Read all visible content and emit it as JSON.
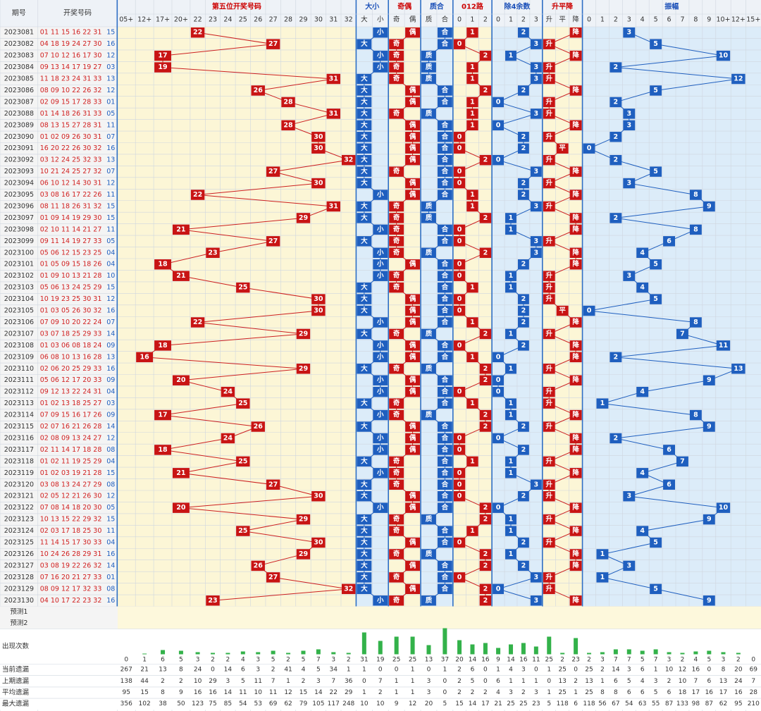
{
  "header": {
    "period_label": "期号",
    "draw_label": "开奖号码",
    "groups": [
      {
        "title": "第五位开奖号码",
        "color": "#cc0000"
      },
      {
        "title": "大小",
        "color": "#1a4fb8"
      },
      {
        "title": "奇偶",
        "color": "#cc0000"
      },
      {
        "title": "质合",
        "color": "#1a4fb8"
      },
      {
        "title": "012路",
        "color": "#cc0000"
      },
      {
        "title": "除4余数",
        "color": "#1a4fb8"
      },
      {
        "title": "升平降",
        "color": "#cc0000"
      },
      {
        "title": "振幅",
        "color": "#1a4fb8"
      }
    ],
    "sub_labels": {
      "position": [
        "05+",
        "12+",
        "17+",
        "20+",
        "22",
        "23",
        "24",
        "25",
        "26",
        "27",
        "28",
        "29",
        "30",
        "31",
        "32"
      ],
      "big_small": [
        "大",
        "小"
      ],
      "odd_even": [
        "奇",
        "偶"
      ],
      "prime_comp": [
        "质",
        "合"
      ],
      "route": [
        "0",
        "1",
        "2"
      ],
      "mod4": [
        "0",
        "1",
        "2",
        "3"
      ],
      "trend": [
        "升",
        "平",
        "降"
      ],
      "amplitude": [
        "0",
        "1",
        "2",
        "3",
        "4",
        "5",
        "6",
        "7",
        "8",
        "9",
        "10+",
        "12+",
        "15+"
      ]
    }
  },
  "chart_data": {
    "type": "table",
    "title": "第五位开奖号码",
    "position_buckets": [
      "05+",
      "12+",
      "17+",
      "20+",
      "22",
      "23",
      "24",
      "25",
      "26",
      "27",
      "28",
      "29",
      "30",
      "31",
      "32"
    ],
    "rows": [
      {
        "period": "2023081",
        "nums": "01 11 15 16 22 31 15",
        "fifth": 22,
        "big_small": "小",
        "odd_even": "偶",
        "prime_comp": "合",
        "route": 1,
        "mod4": 2,
        "trend": "降",
        "amp": 3
      },
      {
        "period": "2023082",
        "nums": "04 18 19 24 27 30 16",
        "fifth": 27,
        "big_small": "大",
        "odd_even": "奇",
        "prime_comp": "合",
        "route": 0,
        "mod4": 3,
        "trend": "升",
        "amp": 5
      },
      {
        "period": "2023083",
        "nums": "07 10 12 16 17 30 12",
        "fifth": 17,
        "big_small": "小",
        "odd_even": "奇",
        "prime_comp": "质",
        "route": 2,
        "mod4": 1,
        "trend": "降",
        "amp": 10
      },
      {
        "period": "2023084",
        "nums": "09 13 14 17 19 27 03",
        "fifth": 19,
        "big_small": "小",
        "odd_even": "奇",
        "prime_comp": "质",
        "route": 1,
        "mod4": 3,
        "trend": "升",
        "amp": 2
      },
      {
        "period": "2023085",
        "nums": "11 18 23 24 31 33 13",
        "fifth": 31,
        "big_small": "大",
        "odd_even": "奇",
        "prime_comp": "质",
        "route": 1,
        "mod4": 3,
        "trend": "升",
        "amp": 12
      },
      {
        "period": "2023086",
        "nums": "08 09 10 22 26 32 12",
        "fifth": 26,
        "big_small": "大",
        "odd_even": "偶",
        "prime_comp": "合",
        "route": 2,
        "mod4": 2,
        "trend": "降",
        "amp": 5
      },
      {
        "period": "2023087",
        "nums": "02 09 15 17 28 33 01",
        "fifth": 28,
        "big_small": "大",
        "odd_even": "偶",
        "prime_comp": "合",
        "route": 1,
        "mod4": 0,
        "trend": "升",
        "amp": 2
      },
      {
        "period": "2023088",
        "nums": "01 14 18 26 31 33 05",
        "fifth": 31,
        "big_small": "大",
        "odd_even": "奇",
        "prime_comp": "质",
        "route": 1,
        "mod4": 3,
        "trend": "升",
        "amp": 3
      },
      {
        "period": "2023089",
        "nums": "08 13 15 27 28 31 11",
        "fifth": 28,
        "big_small": "大",
        "odd_even": "偶",
        "prime_comp": "合",
        "route": 1,
        "mod4": 0,
        "trend": "降",
        "amp": 3
      },
      {
        "period": "2023090",
        "nums": "01 02 09 26 30 31 07",
        "fifth": 30,
        "big_small": "大",
        "odd_even": "偶",
        "prime_comp": "合",
        "route": 0,
        "mod4": 2,
        "trend": "升",
        "amp": 2
      },
      {
        "period": "2023091",
        "nums": "16 20 22 26 30 32 16",
        "fifth": 30,
        "big_small": "大",
        "odd_even": "偶",
        "prime_comp": "合",
        "route": 0,
        "mod4": 2,
        "trend": "平",
        "amp": 0
      },
      {
        "period": "2023092",
        "nums": "03 12 24 25 32 33 13",
        "fifth": 32,
        "big_small": "大",
        "odd_even": "偶",
        "prime_comp": "合",
        "route": 2,
        "mod4": 0,
        "trend": "升",
        "amp": 2
      },
      {
        "period": "2023093",
        "nums": "10 21 24 25 27 32 07",
        "fifth": 27,
        "big_small": "大",
        "odd_even": "奇",
        "prime_comp": "合",
        "route": 0,
        "mod4": 3,
        "trend": "降",
        "amp": 5
      },
      {
        "period": "2023094",
        "nums": "06 10 12 14 30 31 12",
        "fifth": 30,
        "big_small": "大",
        "odd_even": "偶",
        "prime_comp": "合",
        "route": 0,
        "mod4": 2,
        "trend": "升",
        "amp": 3
      },
      {
        "period": "2023095",
        "nums": "03 08 16 17 22 26 11",
        "fifth": 22,
        "big_small": "小",
        "odd_even": "偶",
        "prime_comp": "合",
        "route": 1,
        "mod4": 2,
        "trend": "降",
        "amp": 8
      },
      {
        "period": "2023096",
        "nums": "08 11 18 26 31 32 15",
        "fifth": 31,
        "big_small": "大",
        "odd_even": "奇",
        "prime_comp": "质",
        "route": 1,
        "mod4": 3,
        "trend": "升",
        "amp": 9
      },
      {
        "period": "2023097",
        "nums": "01 09 14 19 29 30 15",
        "fifth": 29,
        "big_small": "大",
        "odd_even": "奇",
        "prime_comp": "质",
        "route": 2,
        "mod4": 1,
        "trend": "降",
        "amp": 2
      },
      {
        "period": "2023098",
        "nums": "02 10 11 14 21 27 11",
        "fifth": 21,
        "big_small": "小",
        "odd_even": "奇",
        "prime_comp": "合",
        "route": 0,
        "mod4": 1,
        "trend": "降",
        "amp": 8
      },
      {
        "period": "2023099",
        "nums": "09 11 14 19 27 33 05",
        "fifth": 27,
        "big_small": "大",
        "odd_even": "奇",
        "prime_comp": "合",
        "route": 0,
        "mod4": 3,
        "trend": "升",
        "amp": 6
      },
      {
        "period": "2023100",
        "nums": "05 06 12 15 23 25 04",
        "fifth": 23,
        "big_small": "小",
        "odd_even": "奇",
        "prime_comp": "质",
        "route": 2,
        "mod4": 3,
        "trend": "降",
        "amp": 4
      },
      {
        "period": "2023101",
        "nums": "01 05 09 15 18 26 04",
        "fifth": 18,
        "big_small": "小",
        "odd_even": "偶",
        "prime_comp": "合",
        "route": 0,
        "mod4": 2,
        "trend": "降",
        "amp": 5
      },
      {
        "period": "2023102",
        "nums": "01 09 10 13 21 28 10",
        "fifth": 21,
        "big_small": "小",
        "odd_even": "奇",
        "prime_comp": "合",
        "route": 0,
        "mod4": 1,
        "trend": "升",
        "amp": 3
      },
      {
        "period": "2023103",
        "nums": "05 06 13 24 25 29 15",
        "fifth": 25,
        "big_small": "大",
        "odd_even": "奇",
        "prime_comp": "合",
        "route": 1,
        "mod4": 1,
        "trend": "升",
        "amp": 4
      },
      {
        "period": "2023104",
        "nums": "10 19 23 25 30 31 12",
        "fifth": 30,
        "big_small": "大",
        "odd_even": "偶",
        "prime_comp": "合",
        "route": 0,
        "mod4": 2,
        "trend": "升",
        "amp": 5
      },
      {
        "period": "2023105",
        "nums": "01 03 05 26 30 32 16",
        "fifth": 30,
        "big_small": "大",
        "odd_even": "偶",
        "prime_comp": "合",
        "route": 0,
        "mod4": 2,
        "trend": "平",
        "amp": 0
      },
      {
        "period": "2023106",
        "nums": "07 09 10 20 22 24 07",
        "fifth": 22,
        "big_small": "小",
        "odd_even": "偶",
        "prime_comp": "合",
        "route": 1,
        "mod4": 2,
        "trend": "降",
        "amp": 8
      },
      {
        "period": "2023107",
        "nums": "03 07 18 25 29 33 14",
        "fifth": 29,
        "big_small": "大",
        "odd_even": "奇",
        "prime_comp": "质",
        "route": 2,
        "mod4": 1,
        "trend": "升",
        "amp": 7
      },
      {
        "period": "2023108",
        "nums": "01 03 06 08 18 24 09",
        "fifth": 18,
        "big_small": "小",
        "odd_even": "偶",
        "prime_comp": "合",
        "route": 0,
        "mod4": 2,
        "trend": "降",
        "amp": 11
      },
      {
        "period": "2023109",
        "nums": "06 08 10 13 16 28 13",
        "fifth": 16,
        "big_small": "小",
        "odd_even": "偶",
        "prime_comp": "合",
        "route": 1,
        "mod4": 0,
        "trend": "降",
        "amp": 2
      },
      {
        "period": "2023110",
        "nums": "02 06 20 25 29 33 16",
        "fifth": 29,
        "big_small": "大",
        "odd_even": "奇",
        "prime_comp": "质",
        "route": 2,
        "mod4": 1,
        "trend": "升",
        "amp": 13
      },
      {
        "period": "2023111",
        "nums": "05 06 12 17 20 33 09",
        "fifth": 20,
        "big_small": "小",
        "odd_even": "偶",
        "prime_comp": "合",
        "route": 2,
        "mod4": 0,
        "trend": "降",
        "amp": 9
      },
      {
        "period": "2023112",
        "nums": "09 12 13 22 24 31 04",
        "fifth": 24,
        "big_small": "小",
        "odd_even": "偶",
        "prime_comp": "合",
        "route": 0,
        "mod4": 0,
        "trend": "升",
        "amp": 4
      },
      {
        "period": "2023113",
        "nums": "01 02 13 18 25 27 03",
        "fifth": 25,
        "big_small": "大",
        "odd_even": "奇",
        "prime_comp": "合",
        "route": 1,
        "mod4": 1,
        "trend": "升",
        "amp": 1
      },
      {
        "period": "2023114",
        "nums": "07 09 15 16 17 26 09",
        "fifth": 17,
        "big_small": "小",
        "odd_even": "奇",
        "prime_comp": "质",
        "route": 2,
        "mod4": 1,
        "trend": "降",
        "amp": 8
      },
      {
        "period": "2023115",
        "nums": "02 07 16 21 26 28 14",
        "fifth": 26,
        "big_small": "大",
        "odd_even": "偶",
        "prime_comp": "合",
        "route": 2,
        "mod4": 2,
        "trend": "升",
        "amp": 9
      },
      {
        "period": "2023116",
        "nums": "02 08 09 13 24 27 12",
        "fifth": 24,
        "big_small": "小",
        "odd_even": "偶",
        "prime_comp": "合",
        "route": 0,
        "mod4": 0,
        "trend": "降",
        "amp": 2
      },
      {
        "period": "2023117",
        "nums": "02 11 14 17 18 28 08",
        "fifth": 18,
        "big_small": "小",
        "odd_even": "偶",
        "prime_comp": "合",
        "route": 0,
        "mod4": 2,
        "trend": "降",
        "amp": 6
      },
      {
        "period": "2023118",
        "nums": "01 02 11 19 25 29 04",
        "fifth": 25,
        "big_small": "大",
        "odd_even": "奇",
        "prime_comp": "合",
        "route": 1,
        "mod4": 1,
        "trend": "升",
        "amp": 7
      },
      {
        "period": "2023119",
        "nums": "01 02 03 19 21 28 15",
        "fifth": 21,
        "big_small": "小",
        "odd_even": "奇",
        "prime_comp": "合",
        "route": 0,
        "mod4": 1,
        "trend": "降",
        "amp": 4
      },
      {
        "period": "2023120",
        "nums": "03 08 13 24 27 29 08",
        "fifth": 27,
        "big_small": "大",
        "odd_even": "奇",
        "prime_comp": "合",
        "route": 0,
        "mod4": 3,
        "trend": "升",
        "amp": 6
      },
      {
        "period": "2023121",
        "nums": "02 05 12 21 26 30 31 12",
        "fifth": 30,
        "big_small": "大",
        "odd_even": "偶",
        "prime_comp": "合",
        "route": 0,
        "mod4": 2,
        "trend": "升",
        "amp": 3
      },
      {
        "period": "2023122",
        "nums": "07 08 14 18 20 30 05",
        "fifth": 20,
        "big_small": "小",
        "odd_even": "偶",
        "prime_comp": "合",
        "route": 2,
        "mod4": 0,
        "trend": "降",
        "amp": 10
      },
      {
        "period": "2023123",
        "nums": "10 13 15 22 29 32 15",
        "fifth": 29,
        "big_small": "大",
        "odd_even": "奇",
        "prime_comp": "质",
        "route": 2,
        "mod4": 1,
        "trend": "升",
        "amp": 9
      },
      {
        "period": "2023124",
        "nums": "02 03 17 18 25 30 11",
        "fifth": 25,
        "big_small": "大",
        "odd_even": "奇",
        "prime_comp": "合",
        "route": 1,
        "mod4": 1,
        "trend": "降",
        "amp": 4
      },
      {
        "period": "2023125",
        "nums": "11 14 15 17 30 33 04",
        "fifth": 30,
        "big_small": "大",
        "odd_even": "偶",
        "prime_comp": "合",
        "route": 0,
        "mod4": 2,
        "trend": "升",
        "amp": 5
      },
      {
        "period": "2023126",
        "nums": "10 24 26 28 29 31 16",
        "fifth": 29,
        "big_small": "大",
        "odd_even": "奇",
        "prime_comp": "质",
        "route": 2,
        "mod4": 1,
        "trend": "降",
        "amp": 1
      },
      {
        "period": "2023127",
        "nums": "03 08 19 22 26 32 14",
        "fifth": 26,
        "big_small": "大",
        "odd_even": "偶",
        "prime_comp": "合",
        "route": 2,
        "mod4": 2,
        "trend": "降",
        "amp": 3
      },
      {
        "period": "2023128",
        "nums": "07 16 20 21 27 33 01",
        "fifth": 27,
        "big_small": "大",
        "odd_even": "奇",
        "prime_comp": "合",
        "route": 0,
        "mod4": 3,
        "trend": "升",
        "amp": 1
      },
      {
        "period": "2023129",
        "nums": "08 09 12 17 32 33 08",
        "fifth": 32,
        "big_small": "大",
        "odd_even": "偶",
        "prime_comp": "合",
        "route": 2,
        "mod4": 0,
        "trend": "升",
        "amp": 5
      },
      {
        "period": "2023130",
        "nums": "04 10 17 22 23 32 16",
        "fifth": 23,
        "big_small": "小",
        "odd_even": "奇",
        "prime_comp": "质",
        "route": 2,
        "mod4": 3,
        "trend": "降",
        "amp": 9
      }
    ],
    "forecast_rows": [
      "预测1",
      "预测2"
    ],
    "stats": [
      {
        "label": "出现次数",
        "values": [
          0,
          1,
          6,
          5,
          3,
          2,
          2,
          4,
          3,
          5,
          2,
          5,
          7,
          3,
          2,
          31,
          19,
          25,
          25,
          13,
          37,
          20,
          14,
          16,
          9,
          14,
          16,
          11,
          25,
          2,
          23,
          2,
          3,
          7,
          7,
          5,
          7,
          3,
          2,
          4,
          5,
          3,
          2,
          0
        ]
      },
      {
        "label": "当前遗漏",
        "values": [
          267,
          21,
          13,
          8,
          24,
          0,
          14,
          6,
          3,
          2,
          41,
          4,
          5,
          34,
          1,
          1,
          0,
          0,
          1,
          0,
          1,
          2,
          6,
          0,
          1,
          4,
          3,
          0,
          1,
          25,
          0,
          25,
          2,
          14,
          3,
          6,
          1,
          10,
          12,
          16,
          0,
          8,
          20,
          69
        ]
      },
      {
        "label": "上期遗漏",
        "values": [
          138,
          44,
          2,
          2,
          10,
          29,
          3,
          5,
          11,
          7,
          1,
          2,
          3,
          7,
          36,
          0,
          7,
          1,
          1,
          3,
          0,
          2,
          5,
          0,
          6,
          1,
          1,
          1,
          0,
          13,
          2,
          13,
          1,
          6,
          5,
          4,
          3,
          2,
          10,
          7,
          6,
          13,
          24,
          7
        ]
      },
      {
        "label": "平均遗漏",
        "values": [
          95,
          15,
          8,
          9,
          16,
          16,
          14,
          11,
          10,
          11,
          12,
          15,
          14,
          22,
          29,
          1,
          2,
          1,
          1,
          3,
          0,
          2,
          2,
          2,
          4,
          3,
          2,
          3,
          1,
          25,
          1,
          25,
          8,
          8,
          6,
          6,
          5,
          6,
          18,
          17,
          16,
          17,
          16,
          28
        ]
      },
      {
        "label": "最大遗漏",
        "values": [
          356,
          102,
          38,
          50,
          123,
          75,
          85,
          54,
          53,
          69,
          62,
          79,
          105,
          117,
          248,
          10,
          10,
          9,
          12,
          20,
          5,
          15,
          14,
          17,
          21,
          25,
          25,
          23,
          5,
          118,
          6,
          118,
          56,
          67,
          54,
          63,
          55,
          87,
          133,
          98,
          87,
          62,
          95,
          210
        ]
      }
    ]
  }
}
